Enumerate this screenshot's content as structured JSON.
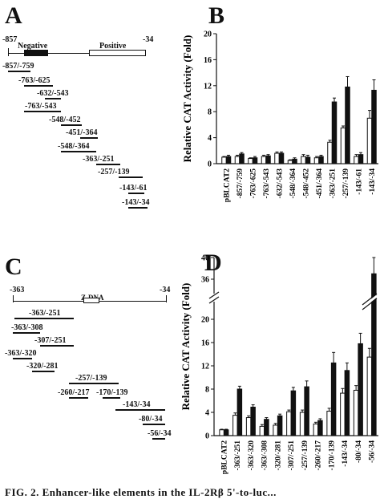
{
  "caption": "FIG. 2. Enhancer-like elements in the IL-2Rβ 5'-to-luc...",
  "panelA": {
    "letter": "A",
    "map_left": "-857",
    "map_right": "-34",
    "negative_label": "Negative",
    "positive_label": "Positive",
    "fragments": [
      "-857/-759",
      "-763/-625",
      "-632/-543",
      "-763/-543",
      "-548/-452",
      "-451/-364",
      "-548/-364",
      "-363/-251",
      "-257/-139",
      "-143/-61",
      "-143/-34"
    ]
  },
  "panelC": {
    "letter": "C",
    "map_left": "-363",
    "map_right": "-34",
    "zdna_label": "Z-DNA",
    "fragments": [
      "-363/-251",
      "-363/-308",
      "-307/-251",
      "-363/-320",
      "-320/-281",
      "-257/-139",
      "-260/-217",
      "-170/-139",
      "-143/-34",
      "-80/-34",
      "-56/-34"
    ]
  },
  "chartB": {
    "letter": "B",
    "chart_data": {
      "type": "bar",
      "ylabel": "Relative CAT Activity (Fold)",
      "ylim": [
        0,
        20
      ],
      "yticks": [
        0,
        4,
        8,
        12,
        16,
        20
      ],
      "categories": [
        "pBLCAT2",
        "-857/-759",
        "-763/-625",
        "-763/-543",
        "-632/-543",
        "-548/-364",
        "-548/-452",
        "-451/-364",
        "-363/-251",
        "-257/-139",
        "-143/-61",
        "-143/-34"
      ],
      "series": [
        {
          "values": [
            1.0,
            1.1,
            0.8,
            1.1,
            1.6,
            0.5,
            1.1,
            0.9,
            3.3,
            5.5,
            1.1,
            7.0
          ],
          "errors": [
            0.1,
            0.2,
            0.1,
            0.2,
            0.2,
            0.1,
            0.3,
            0.2,
            0.3,
            0.3,
            0.3,
            1.2
          ]
        },
        {
          "values": [
            1.1,
            1.5,
            0.9,
            1.2,
            1.6,
            0.7,
            1.0,
            1.1,
            9.5,
            11.8,
            1.4,
            11.3
          ],
          "errors": [
            0.2,
            0.2,
            0.2,
            0.2,
            0.2,
            0.2,
            0.3,
            0.2,
            0.6,
            1.6,
            0.3,
            1.6
          ]
        }
      ]
    }
  },
  "chartD": {
    "letter": "D",
    "chart_data": {
      "type": "bar",
      "ylabel": "Relative CAT Activity (Fold)",
      "ylim": [
        0,
        40
      ],
      "axis_break": [
        22,
        34
      ],
      "yticks": [
        0,
        4,
        8,
        12,
        16,
        20,
        36,
        40
      ],
      "categories": [
        "pBLCAT2",
        "-363/-251",
        "-363/-320",
        "-363/-308",
        "-320/-281",
        "-307/-251",
        "-257/-139",
        "-260/-217",
        "-170/-139",
        "-143/-34",
        "-80/-34",
        "-56/-34"
      ],
      "series": [
        {
          "values": [
            1.0,
            3.5,
            3.1,
            1.6,
            1.8,
            4.1,
            4.0,
            2.0,
            4.2,
            7.3,
            7.8,
            13.5
          ],
          "errors": [
            0.1,
            0.4,
            0.3,
            0.3,
            0.3,
            0.3,
            0.4,
            0.3,
            0.5,
            0.8,
            0.8,
            1.5
          ]
        },
        {
          "values": [
            1.0,
            8.0,
            4.9,
            2.8,
            3.4,
            7.7,
            8.4,
            2.6,
            12.5,
            11.2,
            15.8,
            37.0
          ],
          "errors": [
            0.1,
            0.5,
            0.4,
            0.3,
            0.3,
            0.6,
            1.0,
            0.3,
            1.8,
            1.3,
            1.8,
            3.0
          ]
        }
      ]
    }
  }
}
